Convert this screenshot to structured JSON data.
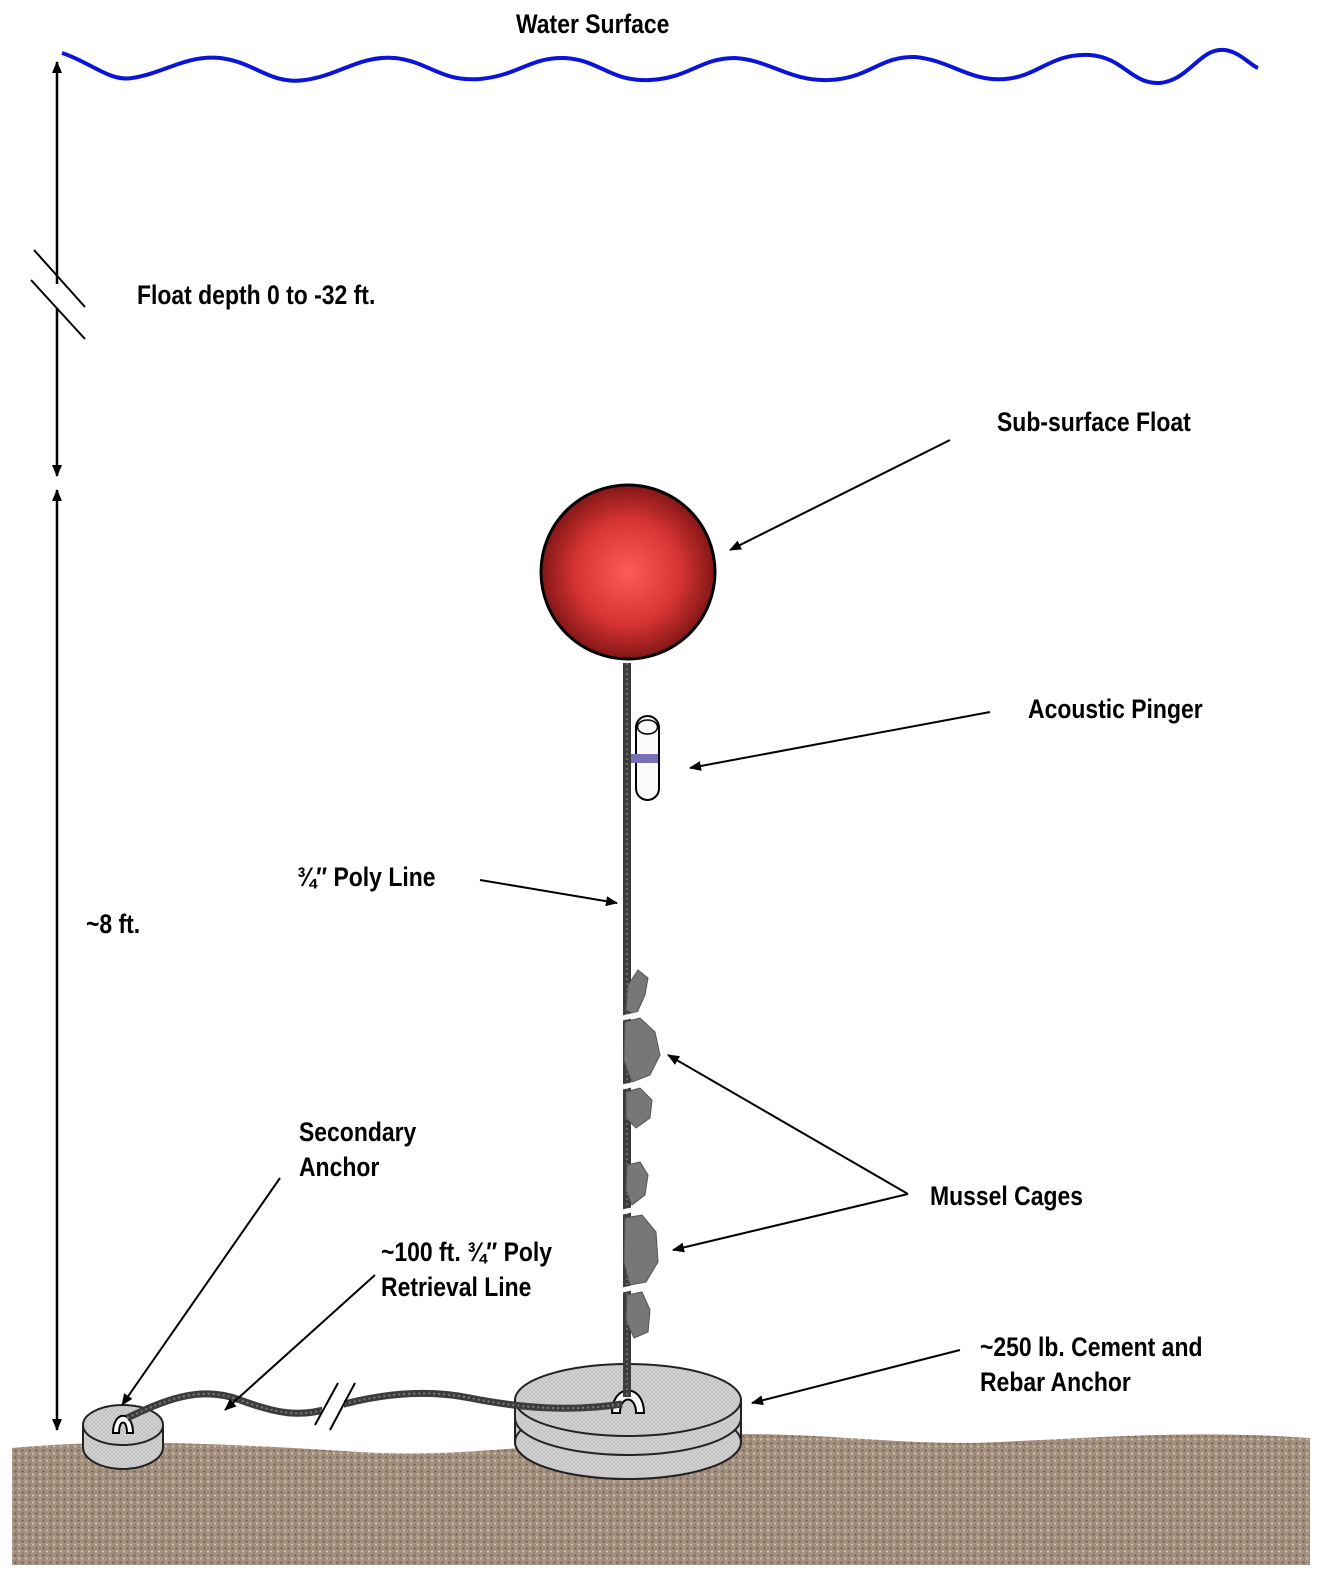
{
  "labels": {
    "water_surface": "Water Surface",
    "float_depth": "Float depth 0 to -32 ft.",
    "sub_surface_float": "Sub-surface Float",
    "acoustic_pinger": "Acoustic Pinger",
    "poly_line": "¾″ Poly Line",
    "height": "~8 ft.",
    "secondary_anchor_line1": "Secondary",
    "secondary_anchor_line2": "Anchor",
    "retrieval_line1": "~100 ft. ¾″ Poly",
    "retrieval_line2": "Retrieval Line",
    "mussel_cages": "Mussel Cages",
    "main_anchor_line1": "~250 lb. Cement and",
    "main_anchor_line2": "Rebar Anchor"
  },
  "colors": {
    "water": "#0a14d8",
    "float_center": "#ff5050",
    "float_edge": "#6e0f0f",
    "sediment": "#a4907e",
    "anchor": "#d2d2d2",
    "pinger_band": "#7a72b8",
    "line": "#3c3c3c"
  }
}
